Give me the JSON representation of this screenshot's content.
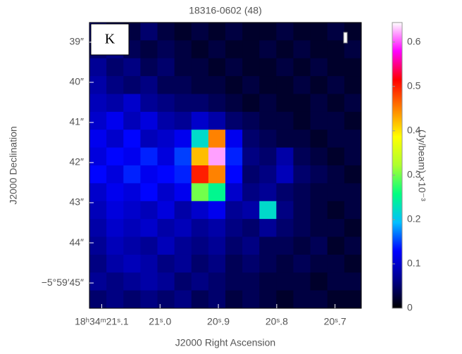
{
  "chart_data": {
    "type": "heatmap",
    "title": "18316-0602 (48)",
    "panel_label": "K",
    "xlabel": "J2000 Right Ascension",
    "ylabel": "J2000 Declination",
    "colorbar_label": "(Jy/beam) ×10⁻³",
    "xlim": [
      21.121,
      20.655
    ],
    "xticks": [
      {
        "value": 21.1,
        "label": "18ʰ34ᵐ21ˢ.1"
      },
      {
        "value": 21.0,
        "label": "21ˢ.0"
      },
      {
        "value": 20.9,
        "label": "20ˢ.9"
      },
      {
        "value": 20.8,
        "label": "20ˢ.8"
      },
      {
        "value": 20.7,
        "label": "20ˢ.7"
      }
    ],
    "ylim": [
      45.63,
      38.51
    ],
    "yticks": [
      {
        "value": 39,
        "label": "39″"
      },
      {
        "value": 40,
        "label": "40″"
      },
      {
        "value": 41,
        "label": "41″"
      },
      {
        "value": 42,
        "label": "42″"
      },
      {
        "value": 43,
        "label": "43″"
      },
      {
        "value": 44,
        "label": "44″"
      },
      {
        "value": 45,
        "label": "−5°59′45″"
      }
    ],
    "clim": [
      0,
      0.644
    ],
    "cticks": [
      0,
      0.1,
      0.2,
      0.3,
      0.4,
      0.5,
      0.6
    ],
    "colormap": [
      "#000000",
      "#00008b",
      "#0000ff",
      "#00bfff",
      "#00ff80",
      "#adff2f",
      "#ffff00",
      "#ff8000",
      "#ff0000",
      "#ff00ff",
      "#ffffff"
    ],
    "z": [
      [
        0.06,
        0.04,
        0.03,
        0.05,
        0.03,
        0.02,
        0.03,
        0.02,
        0.03,
        0.02,
        0.02,
        0.03,
        0.02,
        0.02,
        0.03,
        0.02
      ],
      [
        0.05,
        0.06,
        0.04,
        0.03,
        0.04,
        0.03,
        0.02,
        0.03,
        0.02,
        0.02,
        0.03,
        0.02,
        0.03,
        0.02,
        0.02,
        0.03
      ],
      [
        0.07,
        0.05,
        0.06,
        0.04,
        0.05,
        0.03,
        0.03,
        0.02,
        0.03,
        0.02,
        0.02,
        0.03,
        0.02,
        0.03,
        0.02,
        0.02
      ],
      [
        0.08,
        0.06,
        0.05,
        0.06,
        0.04,
        0.04,
        0.03,
        0.03,
        0.02,
        0.03,
        0.02,
        0.02,
        0.03,
        0.02,
        0.03,
        0.02
      ],
      [
        0.09,
        0.08,
        0.1,
        0.07,
        0.06,
        0.05,
        0.05,
        0.04,
        0.03,
        0.02,
        0.03,
        0.02,
        0.02,
        0.03,
        0.02,
        0.03
      ],
      [
        0.1,
        0.12,
        0.09,
        0.11,
        0.08,
        0.07,
        0.1,
        0.08,
        0.05,
        0.04,
        0.03,
        0.03,
        0.02,
        0.03,
        0.03,
        0.02
      ],
      [
        0.12,
        0.1,
        0.13,
        0.09,
        0.1,
        0.12,
        0.22,
        0.45,
        0.12,
        0.05,
        0.04,
        0.03,
        0.03,
        0.02,
        0.03,
        0.03
      ],
      [
        0.11,
        0.13,
        0.12,
        0.14,
        0.11,
        0.15,
        0.42,
        0.62,
        0.14,
        0.06,
        0.05,
        0.08,
        0.04,
        0.03,
        0.02,
        0.03
      ],
      [
        0.13,
        0.11,
        0.14,
        0.12,
        0.13,
        0.14,
        0.5,
        0.45,
        0.13,
        0.05,
        0.06,
        0.09,
        0.05,
        0.04,
        0.03,
        0.02
      ],
      [
        0.1,
        0.12,
        0.11,
        0.13,
        0.1,
        0.12,
        0.3,
        0.25,
        0.1,
        0.06,
        0.07,
        0.05,
        0.04,
        0.03,
        0.03,
        0.03
      ],
      [
        0.09,
        0.11,
        0.1,
        0.09,
        0.11,
        0.08,
        0.1,
        0.12,
        0.07,
        0.08,
        0.22,
        0.06,
        0.04,
        0.03,
        0.02,
        0.03
      ],
      [
        0.08,
        0.1,
        0.09,
        0.1,
        0.08,
        0.09,
        0.07,
        0.08,
        0.06,
        0.05,
        0.07,
        0.05,
        0.04,
        0.03,
        0.03,
        0.02
      ],
      [
        0.07,
        0.09,
        0.08,
        0.07,
        0.09,
        0.07,
        0.06,
        0.07,
        0.05,
        0.06,
        0.04,
        0.04,
        0.03,
        0.04,
        0.02,
        0.03
      ],
      [
        0.06,
        0.08,
        0.09,
        0.08,
        0.06,
        0.07,
        0.05,
        0.06,
        0.04,
        0.05,
        0.04,
        0.03,
        0.04,
        0.03,
        0.03,
        0.02
      ],
      [
        0.07,
        0.06,
        0.07,
        0.08,
        0.07,
        0.05,
        0.06,
        0.05,
        0.04,
        0.04,
        0.03,
        0.03,
        0.03,
        0.02,
        0.03,
        0.03
      ],
      [
        0.05,
        0.06,
        0.05,
        0.06,
        0.05,
        0.06,
        0.04,
        0.05,
        0.03,
        0.04,
        0.03,
        0.02,
        0.03,
        0.03,
        0.02,
        0.02
      ]
    ]
  }
}
